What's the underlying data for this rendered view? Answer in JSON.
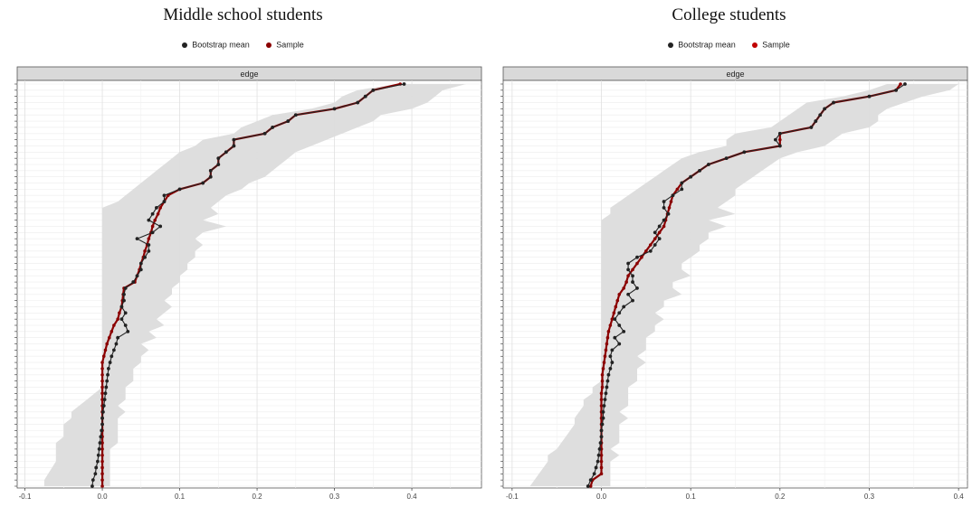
{
  "colors": {
    "bootstrap": "#222222",
    "sample": "#8b0000",
    "band": "#dcdcdc",
    "strip": "#d9d9d9"
  },
  "legend": {
    "bootstrap_label": "Bootstrap mean",
    "sample_label": "Sample"
  },
  "chart_data": [
    {
      "type": "line",
      "title": "Middle school students",
      "facet_label": "edge",
      "xlim": [
        -0.1,
        0.48
      ],
      "x_ticks": [
        -0.1,
        0.0,
        0.1,
        0.2,
        0.3,
        0.4
      ],
      "x_tick_labels": [
        "-0.1",
        "0.0",
        "0.1",
        "0.2",
        "0.3",
        "0.4"
      ],
      "n_edges": 66,
      "grid": true,
      "legend_position": "top",
      "series": [
        {
          "name": "Bootstrap mean",
          "values": [
            0.39,
            0.35,
            0.34,
            0.33,
            0.3,
            0.25,
            0.24,
            0.22,
            0.21,
            0.17,
            0.17,
            0.16,
            0.15,
            0.15,
            0.14,
            0.14,
            0.13,
            0.1,
            0.08,
            0.08,
            0.07,
            0.065,
            0.06,
            0.075,
            0.065,
            0.045,
            0.06,
            0.06,
            0.055,
            0.05,
            0.05,
            0.045,
            0.04,
            0.03,
            0.028,
            0.028,
            0.025,
            0.03,
            0.025,
            0.03,
            0.033,
            0.02,
            0.018,
            0.015,
            0.012,
            0.01,
            0.008,
            0.007,
            0.006,
            0.005,
            0.004,
            0.003,
            0.002,
            0.001,
            0.0,
            0.0,
            -0.001,
            -0.002,
            -0.003,
            -0.004,
            -0.005,
            -0.006,
            -0.008,
            -0.009,
            -0.012,
            -0.013
          ]
        },
        {
          "name": "Sample",
          "values": [
            0.385,
            0.35,
            0.34,
            0.33,
            0.3,
            0.25,
            0.24,
            0.22,
            0.21,
            0.17,
            0.17,
            0.16,
            0.15,
            0.15,
            0.14,
            0.14,
            0.13,
            0.1,
            0.085,
            0.08,
            0.075,
            0.072,
            0.068,
            0.065,
            0.063,
            0.06,
            0.058,
            0.055,
            0.053,
            0.05,
            0.048,
            0.045,
            0.042,
            0.028,
            0.027,
            0.026,
            0.025,
            0.022,
            0.02,
            0.015,
            0.012,
            0.009,
            0.006,
            0.004,
            0.002,
            0.0,
            0.0,
            0.0,
            0.0,
            0.0,
            0.0,
            0.0,
            0.0,
            0.0,
            0.0,
            0.0,
            0.0,
            0.0,
            0.0,
            0.0,
            0.0,
            0.0,
            0.0,
            0.0,
            0.0,
            0.0
          ]
        },
        {
          "name": "band_lower",
          "values": [
            0.38,
            0.33,
            0.31,
            0.3,
            0.27,
            0.22,
            0.2,
            0.18,
            0.17,
            0.13,
            0.12,
            0.1,
            0.09,
            0.08,
            0.07,
            0.06,
            0.05,
            0.04,
            0.03,
            0.02,
            0.0,
            0.0,
            0.0,
            0.0,
            0.0,
            0.0,
            0.0,
            0.0,
            0.0,
            0.0,
            0.0,
            0.0,
            0.0,
            0.0,
            0.0,
            0.0,
            0.0,
            0.0,
            0.0,
            0.0,
            0.0,
            0.0,
            0.0,
            0.0,
            0.0,
            0.0,
            0.0,
            0.0,
            0.0,
            0.0,
            -0.01,
            -0.02,
            -0.03,
            -0.04,
            -0.04,
            -0.05,
            -0.05,
            -0.05,
            -0.06,
            -0.06,
            -0.06,
            -0.06,
            -0.065,
            -0.07,
            -0.075,
            -0.075
          ]
        },
        {
          "name": "band_upper",
          "values": [
            0.47,
            0.44,
            0.43,
            0.42,
            0.4,
            0.36,
            0.35,
            0.33,
            0.31,
            0.29,
            0.27,
            0.25,
            0.24,
            0.23,
            0.22,
            0.21,
            0.19,
            0.18,
            0.16,
            0.15,
            0.14,
            0.15,
            0.13,
            0.16,
            0.13,
            0.12,
            0.13,
            0.12,
            0.12,
            0.11,
            0.11,
            0.1,
            0.1,
            0.09,
            0.09,
            0.08,
            0.09,
            0.08,
            0.07,
            0.08,
            0.06,
            0.07,
            0.05,
            0.06,
            0.05,
            0.05,
            0.04,
            0.04,
            0.04,
            0.03,
            0.03,
            0.03,
            0.02,
            0.03,
            0.02,
            0.02,
            0.02,
            0.02,
            0.02,
            0.01,
            0.01,
            0.01,
            0.01,
            0.01,
            0.01,
            0.01
          ]
        }
      ]
    },
    {
      "type": "line",
      "title": "College students",
      "facet_label": "edge",
      "xlim": [
        -0.1,
        0.4
      ],
      "x_ticks": [
        -0.1,
        0.0,
        0.1,
        0.2,
        0.3,
        0.4
      ],
      "x_tick_labels": [
        "-0.1",
        "0.0",
        "0.1",
        "0.2",
        "0.3",
        "0.4"
      ],
      "n_edges": 66,
      "grid": true,
      "legend_position": "top",
      "series": [
        {
          "name": "Bootstrap mean",
          "values": [
            0.34,
            0.33,
            0.3,
            0.26,
            0.25,
            0.245,
            0.24,
            0.235,
            0.2,
            0.195,
            0.2,
            0.16,
            0.14,
            0.12,
            0.11,
            0.1,
            0.09,
            0.09,
            0.08,
            0.07,
            0.07,
            0.075,
            0.07,
            0.065,
            0.06,
            0.065,
            0.06,
            0.055,
            0.04,
            0.03,
            0.03,
            0.035,
            0.035,
            0.04,
            0.03,
            0.035,
            0.025,
            0.02,
            0.015,
            0.02,
            0.025,
            0.015,
            0.02,
            0.012,
            0.01,
            0.012,
            0.01,
            0.008,
            0.007,
            0.006,
            0.005,
            0.004,
            0.003,
            0.002,
            0.002,
            0.001,
            0.0,
            0.0,
            -0.001,
            -0.002,
            -0.003,
            -0.004,
            -0.006,
            -0.008,
            -0.012,
            -0.015
          ]
        },
        {
          "name": "Sample",
          "values": [
            0.335,
            0.33,
            0.3,
            0.26,
            0.25,
            0.245,
            0.24,
            0.235,
            0.2,
            0.2,
            0.2,
            0.16,
            0.14,
            0.12,
            0.11,
            0.1,
            0.09,
            0.085,
            0.08,
            0.078,
            0.076,
            0.074,
            0.072,
            0.07,
            0.065,
            0.06,
            0.055,
            0.05,
            0.045,
            0.04,
            0.035,
            0.03,
            0.028,
            0.025,
            0.02,
            0.018,
            0.016,
            0.014,
            0.012,
            0.01,
            0.008,
            0.007,
            0.006,
            0.005,
            0.004,
            0.003,
            0.002,
            0.001,
            0.001,
            0.001,
            0.0,
            0.0,
            0.0,
            0.0,
            0.0,
            0.0,
            0.0,
            0.0,
            0.0,
            0.0,
            0.0,
            0.0,
            0.0,
            0.0,
            -0.01,
            -0.012
          ]
        },
        {
          "name": "band_lower",
          "values": [
            0.32,
            0.3,
            0.27,
            0.23,
            0.22,
            0.21,
            0.2,
            0.19,
            0.15,
            0.14,
            0.14,
            0.11,
            0.09,
            0.08,
            0.07,
            0.06,
            0.05,
            0.04,
            0.03,
            0.02,
            0.01,
            0.01,
            0.0,
            0.0,
            0.0,
            0.0,
            0.0,
            0.0,
            0.0,
            0.0,
            0.0,
            0.0,
            0.0,
            0.0,
            0.0,
            0.0,
            0.0,
            0.0,
            0.0,
            0.0,
            0.0,
            0.0,
            0.0,
            0.0,
            0.0,
            0.0,
            0.0,
            0.0,
            0.0,
            -0.01,
            -0.01,
            -0.02,
            -0.02,
            -0.025,
            -0.03,
            -0.03,
            -0.035,
            -0.04,
            -0.045,
            -0.05,
            -0.06,
            -0.06,
            -0.065,
            -0.07,
            -0.075,
            -0.08
          ]
        },
        {
          "name": "band_upper",
          "values": [
            0.4,
            0.39,
            0.36,
            0.34,
            0.32,
            0.31,
            0.31,
            0.3,
            0.27,
            0.26,
            0.25,
            0.22,
            0.2,
            0.19,
            0.18,
            0.17,
            0.16,
            0.15,
            0.15,
            0.14,
            0.13,
            0.15,
            0.12,
            0.14,
            0.12,
            0.12,
            0.11,
            0.11,
            0.1,
            0.09,
            0.09,
            0.1,
            0.08,
            0.08,
            0.09,
            0.07,
            0.07,
            0.06,
            0.07,
            0.06,
            0.06,
            0.05,
            0.05,
            0.05,
            0.04,
            0.05,
            0.04,
            0.04,
            0.04,
            0.03,
            0.03,
            0.03,
            0.03,
            0.02,
            0.03,
            0.02,
            0.02,
            0.02,
            0.02,
            0.01,
            0.02,
            0.01,
            0.01,
            0.01,
            0.01,
            0.01
          ]
        }
      ]
    }
  ]
}
